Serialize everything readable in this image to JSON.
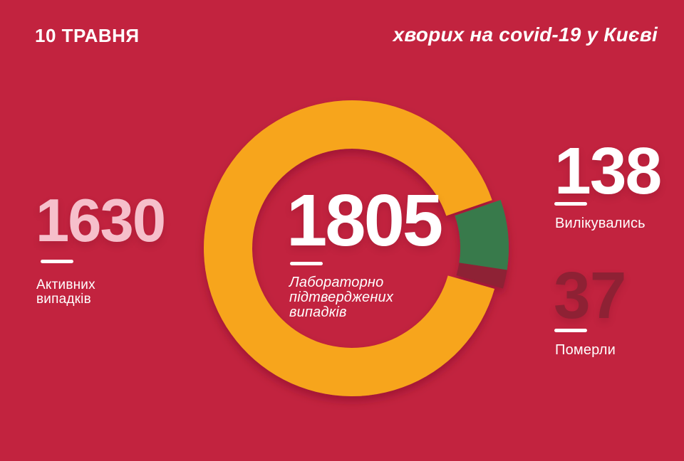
{
  "header": {
    "date": "10 ТРАВНЯ",
    "title": "хворих на covid-19 у Києві"
  },
  "stats": {
    "active": {
      "value": "1630",
      "label1": "Активних",
      "label2": "випадків"
    },
    "confirmed": {
      "value": "1805",
      "label1": "Лабораторно",
      "label2": "підтверджених",
      "label3": "випадків"
    },
    "recovered": {
      "value": "138",
      "label": "Вилікувались"
    },
    "deaths": {
      "value": "37",
      "label": "Померли"
    }
  },
  "colors": {
    "background": "#C2233F",
    "orange": "#F7A51D",
    "green": "#377A4C",
    "maroon": "#8E2134",
    "pink": "#F6BFCB",
    "white": "#FFFFFF"
  },
  "chart_data": {
    "type": "pie",
    "donut": true,
    "title": "хворих на covid-19 у Києві",
    "center_value": 1805,
    "center_label": "Лабораторно підтверджених випадків",
    "total": 1805,
    "start_angle_deg": 71,
    "legend_position": "none",
    "segments": [
      {
        "name": "Вилікувались",
        "value": 138,
        "color": "#377A4C",
        "exploded": true
      },
      {
        "name": "Померли",
        "value": 37,
        "color": "#8E2134",
        "exploded": true
      },
      {
        "name": "Активних випадків",
        "value": 1630,
        "color": "#F7A51D",
        "exploded": false
      }
    ]
  }
}
